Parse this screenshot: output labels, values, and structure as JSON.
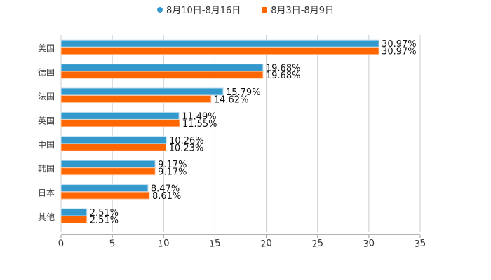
{
  "chart_data": {
    "type": "bar",
    "orientation": "horizontal",
    "categories": [
      "美国",
      "德国",
      "法国",
      "英国",
      "中国",
      "韩国",
      "日本",
      "其他"
    ],
    "series": [
      {
        "name": "8月10日-8月16日",
        "color": "#3399cc",
        "values": [
          30.97,
          19.68,
          15.79,
          11.49,
          10.26,
          9.17,
          8.47,
          2.51
        ],
        "labels": [
          "30.97%",
          "19.68%",
          "15.79%",
          "11.49%",
          "10.26%",
          "9.17%",
          "8.47%",
          "2.51%"
        ]
      },
      {
        "name": "8月3日-8月9日",
        "color": "#ff6600",
        "values": [
          30.97,
          19.68,
          14.62,
          11.55,
          10.23,
          9.17,
          8.61,
          2.51
        ],
        "labels": [
          "30.97%",
          "19.68%",
          "14.62%",
          "11.55%",
          "10.23%",
          "9.17%",
          "8.61%",
          "2.51%"
        ]
      }
    ],
    "xlim": [
      0,
      35
    ],
    "xticks": [
      "0",
      "5",
      "10",
      "15",
      "20",
      "25",
      "30",
      "35"
    ],
    "grid": true,
    "legend_position": "top-center",
    "title": "",
    "xlabel": "",
    "ylabel": ""
  }
}
